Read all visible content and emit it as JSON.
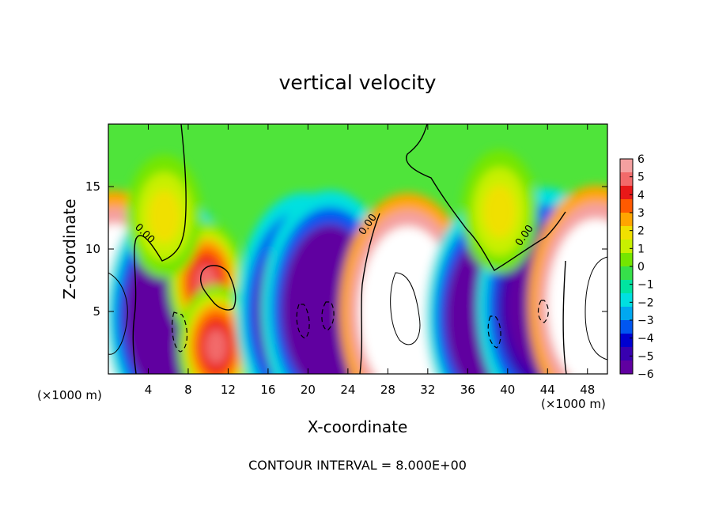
{
  "chart_data": {
    "type": "heatmap",
    "title": "vertical velocity",
    "xlabel": "X-coordinate",
    "ylabel": "Z-coordinate",
    "x_unit_label_left": "(×1000 m)",
    "x_unit_label_right": "(×1000 m)",
    "footer": "CONTOUR INTERVAL = 8.000E+00",
    "xlim": [
      0,
      50
    ],
    "ylim": [
      0,
      20
    ],
    "x_ticks": [
      4,
      8,
      12,
      16,
      20,
      24,
      28,
      32,
      36,
      40,
      44,
      48
    ],
    "y_ticks": [
      5,
      10,
      15
    ],
    "colorbar_range": [
      -6,
      6
    ],
    "colorbar_ticks": [
      6,
      5,
      4,
      3,
      2,
      1,
      0,
      -1,
      -2,
      -3,
      -4,
      -5,
      -6
    ],
    "colorbar_colors": [
      "#f4a0a0",
      "#f26a6a",
      "#e81818",
      "#ff5a00",
      "#ffa500",
      "#f0e000",
      "#c8f000",
      "#74e600",
      "#36e04a",
      "#00e4a0",
      "#00e0e0",
      "#00a8f0",
      "#0056f0",
      "#0000d0",
      "#3800b0",
      "#6000a0"
    ],
    "zero_contour_label": "0.00",
    "regions": [
      {
        "kind": "updraft",
        "x": 0.6,
        "z": 5.2,
        "w_peak": 20
      },
      {
        "kind": "downdraft",
        "x": 6.5,
        "z": 4.6,
        "w_peak": -12
      },
      {
        "kind": "updraft",
        "x": 9.8,
        "z": 7.3,
        "w_peak": 5
      },
      {
        "kind": "updraft",
        "x": 10.8,
        "z": 2.2,
        "w_peak": 5
      },
      {
        "kind": "downdraft",
        "x": 19.6,
        "z": 5.0,
        "w_peak": -12
      },
      {
        "kind": "downdraft",
        "x": 22.2,
        "z": 5.2,
        "w_peak": -12
      },
      {
        "kind": "updraft",
        "x": 30.0,
        "z": 5.0,
        "w_peak": 20
      },
      {
        "kind": "downdraft",
        "x": 38.6,
        "z": 4.6,
        "w_peak": -12
      },
      {
        "kind": "downdraft",
        "x": 43.8,
        "z": 5.4,
        "w_peak": -10
      },
      {
        "kind": "updraft",
        "x": 48.9,
        "z": 5.6,
        "w_peak": 20
      },
      {
        "kind": "updraft",
        "x": 39.2,
        "z": 13.0,
        "w_peak": 2
      },
      {
        "kind": "updraft",
        "x": 5.6,
        "z": 12.6,
        "w_peak": 2
      }
    ]
  }
}
